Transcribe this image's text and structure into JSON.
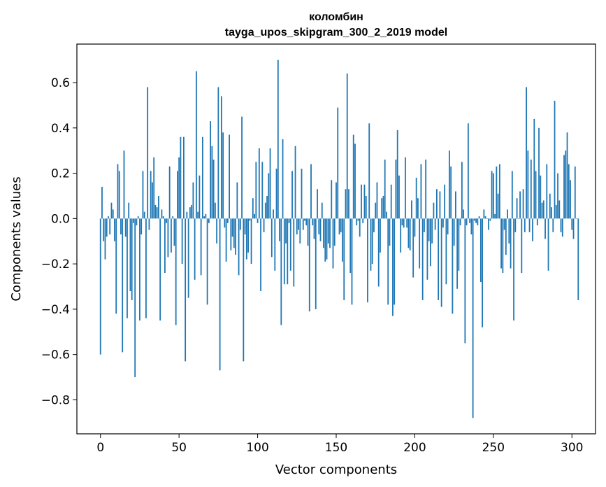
{
  "chart_data": {
    "type": "bar",
    "title": "коломбин",
    "subtitle": "tayga_upos_skipgram_300_2_2019 model",
    "xlabel": "Vector components",
    "ylabel": "Components values",
    "xlim": [
      -15,
      315
    ],
    "ylim": [
      -0.95,
      0.77
    ],
    "xticks": [
      0,
      50,
      100,
      150,
      200,
      250,
      300
    ],
    "xtick_labels": [
      "0",
      "50",
      "100",
      "150",
      "200",
      "250",
      "300"
    ],
    "yticks": [
      -0.8,
      -0.6,
      -0.4,
      -0.2,
      0.0,
      0.2,
      0.4,
      0.6
    ],
    "ytick_labels": [
      "−0.8",
      "−0.6",
      "−0.4",
      "−0.2",
      "0.0",
      "0.2",
      "0.4",
      "0.6"
    ],
    "bar_color": "#1f77b4",
    "values": [
      -0.6,
      0.14,
      -0.1,
      -0.18,
      -0.08,
      0.01,
      -0.07,
      0.07,
      0.04,
      -0.1,
      -0.42,
      0.24,
      0.21,
      -0.07,
      -0.59,
      0.3,
      -0.08,
      -0.44,
      0.07,
      -0.32,
      -0.36,
      -0.02,
      -0.7,
      -0.03,
      0.01,
      -0.45,
      -0.07,
      0.21,
      0.03,
      -0.44,
      0.58,
      -0.05,
      0.21,
      0.16,
      0.27,
      0.06,
      0.05,
      0.1,
      -0.45,
      0.04,
      0.01,
      -0.24,
      -0.02,
      -0.17,
      0.23,
      -0.15,
      0.01,
      -0.12,
      -0.47,
      0.21,
      0.27,
      0.36,
      -0.2,
      0.36,
      -0.63,
      0.03,
      -0.35,
      0.05,
      0.06,
      0.16,
      -0.27,
      0.65,
      0.03,
      0.19,
      -0.25,
      0.36,
      0.01,
      0.02,
      -0.38,
      -0.02,
      0.43,
      0.32,
      0.26,
      0.07,
      -0.11,
      0.58,
      -0.67,
      0.54,
      0.38,
      -0.04,
      -0.19,
      -0.02,
      0.37,
      -0.14,
      -0.08,
      -0.13,
      -0.16,
      0.16,
      -0.25,
      -0.05,
      0.45,
      -0.63,
      -0.07,
      -0.18,
      -0.15,
      -0.01,
      -0.2,
      0.09,
      0.02,
      0.25,
      -0.02,
      0.31,
      -0.32,
      0.25,
      -0.06,
      0.07,
      0.1,
      0.2,
      0.31,
      -0.17,
      0.04,
      -0.23,
      0.22,
      0.7,
      -0.1,
      -0.47,
      0.35,
      -0.29,
      -0.11,
      -0.29,
      -0.02,
      -0.23,
      0.21,
      -0.3,
      0.32,
      -0.07,
      -0.05,
      -0.11,
      0.22,
      -0.05,
      -0.01,
      -0.03,
      -0.12,
      -0.41,
      0.24,
      -0.03,
      -0.09,
      -0.4,
      0.13,
      -0.07,
      -0.1,
      0.07,
      -0.13,
      -0.19,
      -0.18,
      -0.11,
      -0.13,
      0.17,
      -0.22,
      -0.12,
      0.16,
      0.49,
      -0.07,
      -0.06,
      -0.19,
      -0.36,
      0.13,
      0.64,
      0.13,
      -0.24,
      -0.38,
      0.37,
      0.33,
      -0.03,
      -0.01,
      -0.08,
      0.15,
      -0.02,
      0.15,
      0.1,
      -0.37,
      0.42,
      -0.23,
      -0.2,
      -0.06,
      0.07,
      0.16,
      -0.3,
      -0.15,
      0.09,
      0.1,
      0.26,
      0.03,
      -0.38,
      -0.12,
      0.15,
      -0.43,
      -0.38,
      0.26,
      0.39,
      0.19,
      -0.15,
      -0.03,
      -0.04,
      0.27,
      -0.04,
      -0.13,
      -0.14,
      0.08,
      -0.26,
      -0.08,
      0.18,
      0.09,
      -0.22,
      0.24,
      -0.36,
      -0.06,
      0.26,
      -0.27,
      -0.1,
      -0.21,
      -0.11,
      0.07,
      -0.05,
      0.13,
      -0.36,
      0.12,
      -0.39,
      -0.04,
      0.15,
      -0.29,
      -0.07,
      0.3,
      0.23,
      -0.42,
      -0.12,
      0.12,
      -0.31,
      -0.23,
      -0.03,
      0.25,
      0.04,
      -0.55,
      -0.03,
      0.42,
      -0.02,
      -0.07,
      -0.88,
      -0.01,
      -0.02,
      -0.03,
      0.01,
      -0.28,
      -0.48,
      0.04,
      0.01,
      0.0,
      -0.05,
      -0.01,
      0.21,
      0.2,
      0.02,
      0.23,
      0.11,
      0.24,
      -0.22,
      -0.24,
      -0.05,
      -0.16,
      0.04,
      -0.11,
      -0.22,
      0.21,
      -0.45,
      -0.06,
      0.09,
      0.0,
      0.12,
      -0.24,
      0.13,
      -0.06,
      0.58,
      0.3,
      -0.06,
      0.26,
      -0.1,
      0.44,
      0.21,
      -0.03,
      0.4,
      0.19,
      0.07,
      0.08,
      -0.09,
      0.24,
      -0.23,
      0.11,
      0.05,
      -0.06,
      0.52,
      0.06,
      0.2,
      0.08,
      -0.06,
      -0.08,
      0.28,
      0.3,
      0.38,
      0.24,
      0.17,
      -0.05,
      -0.09,
      0.23,
      0.0,
      -0.36
    ]
  }
}
